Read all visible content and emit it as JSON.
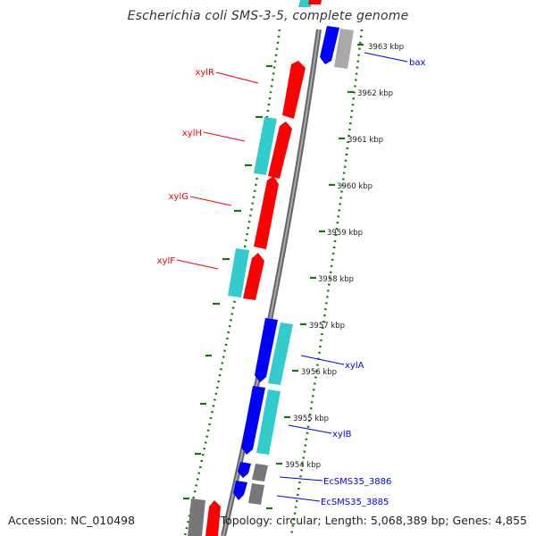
{
  "title": "Escherichia coli SMS-3-5, complete genome",
  "footer": {
    "accession": "Accession: NC_010498",
    "stats": "Topology: circular; Length: 5,068,389 bp; Genes: 4,855"
  },
  "colors": {
    "forward_cds": "#ff0000",
    "reverse_cds": "#0000ff",
    "match_cyan": "#33cccc",
    "gray_feature": "#999999",
    "backbone": "#777777",
    "tick": "#117711"
  },
  "scale": [
    {
      "label": "3963 kbp"
    },
    {
      "label": "3962 kbp"
    },
    {
      "label": "3961 kbp"
    },
    {
      "label": "3960 kbp"
    },
    {
      "label": "3959 kbp"
    },
    {
      "label": "3958 kbp"
    },
    {
      "label": "3957 kbp"
    },
    {
      "label": "3956 kbp"
    },
    {
      "label": "3955 kbp"
    },
    {
      "label": "3954 kbp"
    }
  ],
  "gene_labels": {
    "left": [
      "xylR",
      "xylH",
      "xylG",
      "xylF"
    ],
    "right": [
      "bax",
      "xylA",
      "xylB",
      "EcSMS35_3886",
      "EcSMS35_3885"
    ]
  }
}
